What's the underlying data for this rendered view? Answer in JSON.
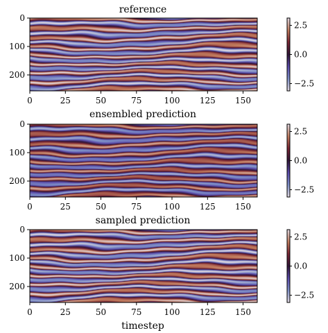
{
  "chart_data": [
    {
      "type": "heatmap",
      "title": "reference",
      "xlabel": "",
      "ylabel": "",
      "xlim": [
        0,
        160
      ],
      "ylim": [
        256,
        0
      ],
      "x_ticks": [
        "0",
        "25",
        "50",
        "75",
        "100",
        "125",
        "150"
      ],
      "y_ticks": [
        "0",
        "100",
        "200"
      ],
      "colorbar": {
        "range": [
          -3,
          3
        ],
        "ticks": [
          "2.5",
          "0.0",
          "−2.5"
        ]
      },
      "colormap": "twilight_shifted"
    },
    {
      "type": "heatmap",
      "title": "ensembled prediction",
      "xlabel": "",
      "ylabel": "",
      "xlim": [
        0,
        160
      ],
      "ylim": [
        256,
        0
      ],
      "x_ticks": [
        "0",
        "25",
        "50",
        "75",
        "100",
        "125",
        "150"
      ],
      "y_ticks": [
        "0",
        "100",
        "200"
      ],
      "colorbar": {
        "range": [
          -3,
          3
        ],
        "ticks": [
          "2.5",
          "0.0",
          "−2.5"
        ]
      },
      "colormap": "twilight_shifted"
    },
    {
      "type": "heatmap",
      "title": "sampled prediction",
      "xlabel": "timestep",
      "ylabel": "",
      "xlim": [
        0,
        160
      ],
      "ylim": [
        256,
        0
      ],
      "x_ticks": [
        "0",
        "25",
        "50",
        "75",
        "100",
        "125",
        "150"
      ],
      "y_ticks": [
        "0",
        "100",
        "200"
      ],
      "colorbar": {
        "range": [
          -3,
          3
        ],
        "ticks": [
          "2.5",
          "0.0",
          "−2.5"
        ]
      },
      "colormap": "twilight_shifted"
    }
  ],
  "colors": {
    "cmap_stops": [
      "#e2d9e2",
      "#7d8fc6",
      "#5b4bac",
      "#2f1436",
      "#7a2533",
      "#c17b5d",
      "#e2d9e2"
    ]
  }
}
